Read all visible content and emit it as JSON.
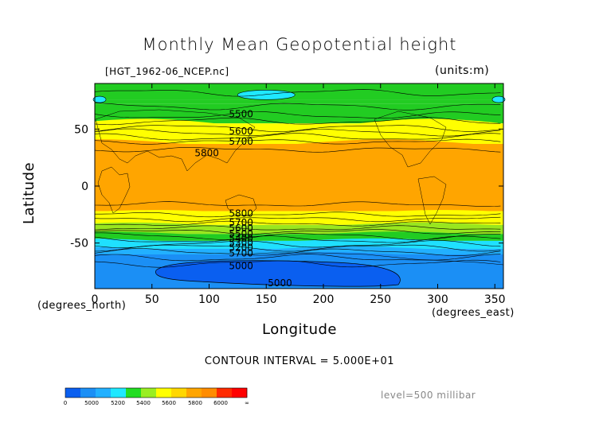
{
  "header": {
    "title": "Monthly Mean Geopotential height",
    "filename": "[HGT_1962-06_NCEP.nc]",
    "units": "(units:m)"
  },
  "footer": {
    "contour_interval": "CONTOUR INTERVAL = 5.000E+01",
    "level": "level=500 millibar"
  },
  "chart_data": {
    "type": "heatmap",
    "title": "Monthly Mean Geopotential height",
    "xlabel": "Longitude",
    "ylabel": "Latitude",
    "x_unit_label": "(degrees_east)",
    "y_unit_label": "(degrees_north)",
    "xlim": [
      0,
      357.5
    ],
    "ylim": [
      -90,
      90
    ],
    "x_ticks": [
      0,
      50,
      100,
      150,
      200,
      250,
      300,
      350
    ],
    "y_ticks": [
      -50,
      0,
      50
    ],
    "contour_labels": [
      {
        "text": "5500",
        "lon": 128,
        "lat": 63
      },
      {
        "text": "5600",
        "lon": 128,
        "lat": 48
      },
      {
        "text": "5700",
        "lon": 128,
        "lat": 39
      },
      {
        "text": "5800",
        "lon": 98,
        "lat": 29
      },
      {
        "text": "5800",
        "lon": 128,
        "lat": -24
      },
      {
        "text": "5700",
        "lon": 128,
        "lat": -32
      },
      {
        "text": "5600",
        "lon": 128,
        "lat": -37
      },
      {
        "text": "5500",
        "lon": 128,
        "lat": -42
      },
      {
        "text": "5400",
        "lon": 128,
        "lat": -46
      },
      {
        "text": "5300",
        "lon": 128,
        "lat": -50
      },
      {
        "text": "5200",
        "lon": 128,
        "lat": -54
      },
      {
        "text": "5700",
        "lon": 128,
        "lat": -59
      },
      {
        "text": "5000",
        "lon": 128,
        "lat": -70
      },
      {
        "text": "5000",
        "lon": 162,
        "lat": -85
      }
    ],
    "colorbar": {
      "labels": [
        "0",
        "5000",
        "5200",
        "5400",
        "5600",
        "5800",
        "6000",
        "∞"
      ],
      "colors": [
        "#0a5ff0",
        "#1b8ff5",
        "#22b0ff",
        "#1fe8ff",
        "#22dd22",
        "#99ee22",
        "#ffff00",
        "#ffd700",
        "#ffa500",
        "#ff8c00",
        "#ff2a00",
        "#ff0000"
      ]
    },
    "contour_interval": 50,
    "level": "500 millibar"
  }
}
